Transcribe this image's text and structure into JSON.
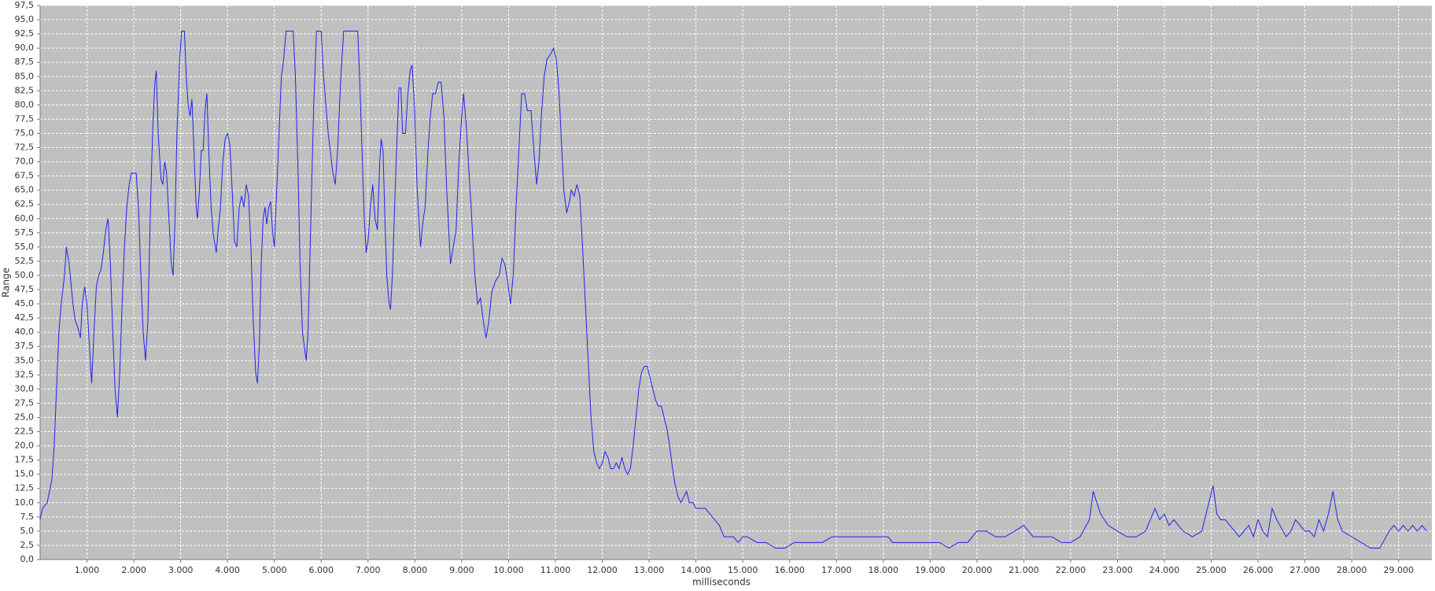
{
  "chart_data": {
    "type": "line",
    "x_label": "milliseconds",
    "y_label": "Range",
    "color": "#2222ee",
    "grid": true,
    "background": "#c0c0c0",
    "xlim": [
      0,
      29710
    ],
    "ylim": [
      0,
      97.5
    ],
    "xticks": [
      {
        "value": 1000,
        "label": "1.000"
      },
      {
        "value": 2000,
        "label": "2.000"
      },
      {
        "value": 3000,
        "label": "3.000"
      },
      {
        "value": 4000,
        "label": "4.000"
      },
      {
        "value": 5000,
        "label": "5.000"
      },
      {
        "value": 6000,
        "label": "6.000"
      },
      {
        "value": 7000,
        "label": "7.000"
      },
      {
        "value": 8000,
        "label": "8.000"
      },
      {
        "value": 9000,
        "label": "9.000"
      },
      {
        "value": 10000,
        "label": "10.000"
      },
      {
        "value": 11000,
        "label": "11.000"
      },
      {
        "value": 12000,
        "label": "12.000"
      },
      {
        "value": 13000,
        "label": "13.000"
      },
      {
        "value": 14000,
        "label": "14.000"
      },
      {
        "value": 15000,
        "label": "15.000"
      },
      {
        "value": 16000,
        "label": "16.000"
      },
      {
        "value": 17000,
        "label": "17.000"
      },
      {
        "value": 18000,
        "label": "18.000"
      },
      {
        "value": 19000,
        "label": "19.000"
      },
      {
        "value": 20000,
        "label": "20.000"
      },
      {
        "value": 21000,
        "label": "21.000"
      },
      {
        "value": 22000,
        "label": "22.000"
      },
      {
        "value": 23000,
        "label": "23.000"
      },
      {
        "value": 24000,
        "label": "24.000"
      },
      {
        "value": 25000,
        "label": "25.000"
      },
      {
        "value": 26000,
        "label": "26.000"
      },
      {
        "value": 27000,
        "label": "27.000"
      },
      {
        "value": 28000,
        "label": "28.000"
      },
      {
        "value": 29000,
        "label": "29.000"
      }
    ],
    "yticks": [
      {
        "value": 0,
        "label": "0,0"
      },
      {
        "value": 2.5,
        "label": "2,5"
      },
      {
        "value": 5,
        "label": "5,0"
      },
      {
        "value": 7.5,
        "label": "7,5"
      },
      {
        "value": 10,
        "label": "10,0"
      },
      {
        "value": 12.5,
        "label": "12,5"
      },
      {
        "value": 15,
        "label": "15,0"
      },
      {
        "value": 17.5,
        "label": "17,5"
      },
      {
        "value": 20,
        "label": "20,0"
      },
      {
        "value": 22.5,
        "label": "22,5"
      },
      {
        "value": 25,
        "label": "25,0"
      },
      {
        "value": 27.5,
        "label": "27,5"
      },
      {
        "value": 30,
        "label": "30,0"
      },
      {
        "value": 32.5,
        "label": "32,5"
      },
      {
        "value": 35,
        "label": "35,0"
      },
      {
        "value": 37.5,
        "label": "37,5"
      },
      {
        "value": 40,
        "label": "40,0"
      },
      {
        "value": 42.5,
        "label": "42,5"
      },
      {
        "value": 45,
        "label": "45,0"
      },
      {
        "value": 47.5,
        "label": "47,5"
      },
      {
        "value": 50,
        "label": "50,0"
      },
      {
        "value": 52.5,
        "label": "52,5"
      },
      {
        "value": 55,
        "label": "55,0"
      },
      {
        "value": 57.5,
        "label": "57,5"
      },
      {
        "value": 60,
        "label": "60,0"
      },
      {
        "value": 62.5,
        "label": "62,5"
      },
      {
        "value": 65,
        "label": "65,0"
      },
      {
        "value": 67.5,
        "label": "67,5"
      },
      {
        "value": 70,
        "label": "70,0"
      },
      {
        "value": 72.5,
        "label": "72,5"
      },
      {
        "value": 75,
        "label": "75,0"
      },
      {
        "value": 77.5,
        "label": "77,5"
      },
      {
        "value": 80,
        "label": "80,0"
      },
      {
        "value": 82.5,
        "label": "82,5"
      },
      {
        "value": 85,
        "label": "85,0"
      },
      {
        "value": 87.5,
        "label": "87,5"
      },
      {
        "value": 90,
        "label": "90,0"
      },
      {
        "value": 92.5,
        "label": "92,5"
      },
      {
        "value": 95,
        "label": "95,0"
      },
      {
        "value": 97.5,
        "label": "97,5"
      }
    ],
    "x": [
      0,
      50,
      150,
      250,
      300,
      350,
      400,
      450,
      520,
      560,
      620,
      700,
      750,
      800,
      860,
      900,
      950,
      1000,
      1050,
      1100,
      1150,
      1200,
      1250,
      1300,
      1350,
      1400,
      1450,
      1500,
      1550,
      1600,
      1650,
      1700,
      1750,
      1800,
      1850,
      1900,
      1950,
      2050,
      2100,
      2150,
      2200,
      2250,
      2300,
      2350,
      2400,
      2450,
      2480,
      2520,
      2580,
      2620,
      2660,
      2700,
      2750,
      2800,
      2840,
      2880,
      2920,
      2980,
      3020,
      3080,
      3120,
      3160,
      3200,
      3240,
      3280,
      3330,
      3360,
      3400,
      3440,
      3480,
      3520,
      3560,
      3600,
      3650,
      3700,
      3760,
      3800,
      3850,
      3900,
      3950,
      4000,
      4050,
      4100,
      4150,
      4200,
      4250,
      4300,
      4350,
      4400,
      4450,
      4500,
      4550,
      4600,
      4640,
      4680,
      4720,
      4760,
      4800,
      4840,
      4880,
      4920,
      4960,
      5000,
      5050,
      5100,
      5150,
      5200,
      5250,
      5400,
      5450,
      5500,
      5550,
      5600,
      5680,
      5720,
      5780,
      5840,
      5900,
      6000,
      6050,
      6150,
      6250,
      6300,
      6350,
      6420,
      6480,
      6780,
      6820,
      6880,
      6920,
      6960,
      7000,
      7050,
      7100,
      7150,
      7200,
      7250,
      7280,
      7320,
      7360,
      7400,
      7450,
      7480,
      7520,
      7560,
      7600,
      7660,
      7700,
      7740,
      7800,
      7850,
      7900,
      7940,
      7990,
      8050,
      8120,
      8180,
      8220,
      8280,
      8330,
      8380,
      8440,
      8500,
      8560,
      8620,
      8680,
      8760,
      8820,
      8880,
      8940,
      9000,
      9040,
      9100,
      9200,
      9280,
      9340,
      9400,
      9460,
      9520,
      9580,
      9640,
      9720,
      9800,
      9860,
      9920,
      9980,
      10040,
      10100,
      10160,
      10220,
      10280,
      10340,
      10400,
      10480,
      10540,
      10600,
      10650,
      10700,
      10760,
      10820,
      10900,
      10960,
      11020,
      11080,
      11120,
      11180,
      11240,
      11300,
      11340,
      11400,
      11460,
      11520,
      11580,
      11640,
      11700,
      11760,
      11820,
      11880,
      11940,
      12000,
      12060,
      12120,
      12180,
      12240,
      12300,
      12360,
      12420,
      12480,
      12540,
      12600,
      12660,
      12720,
      12780,
      12840,
      12900,
      12960,
      13020,
      13080,
      13140,
      13200,
      13260,
      13320,
      13380,
      13440,
      13500,
      13560,
      13620,
      13680,
      13740,
      13800,
      13860,
      13940,
      14000,
      14100,
      14200,
      14300,
      14400,
      14500,
      14600,
      14800,
      14900,
      15000,
      15100,
      15300,
      15500,
      15700,
      15900,
      16100,
      16300,
      16500,
      16700,
      16900,
      17100,
      17300,
      17500,
      17700,
      17900,
      18100,
      18200,
      18400,
      18600,
      18800,
      19000,
      19200,
      19400,
      19600,
      19800,
      20000,
      20200,
      20400,
      20600,
      20800,
      21000,
      21200,
      21400,
      21600,
      21800,
      22000,
      22200,
      22400,
      22480,
      22560,
      22640,
      22800,
      23000,
      23200,
      23400,
      23600,
      23700,
      23800,
      23900,
      24000,
      24100,
      24200,
      24400,
      24600,
      24800,
      24950,
      25040,
      25120,
      25200,
      25300,
      25400,
      25500,
      25600,
      25800,
      25900,
      26000,
      26100,
      26200,
      26300,
      26400,
      26600,
      26700,
      26800,
      26900,
      27000,
      27100,
      27200,
      27300,
      27400,
      27500,
      27600,
      27700,
      27800,
      28000,
      28200,
      28400,
      28600,
      28800,
      28900,
      29000,
      29100,
      29200,
      29300,
      29400,
      29500,
      29600
    ],
    "values": [
      7,
      9,
      10,
      14,
      20,
      30,
      40,
      45,
      50,
      55,
      52,
      45,
      42,
      41,
      39,
      45,
      48,
      45,
      38,
      31,
      40,
      48,
      50,
      51,
      54,
      58,
      60,
      52,
      40,
      30,
      25,
      33,
      45,
      55,
      62,
      66,
      68,
      68,
      62,
      50,
      40,
      35,
      42,
      60,
      75,
      84,
      86,
      75,
      67,
      66,
      70,
      68,
      60,
      52,
      50,
      60,
      75,
      88,
      93,
      93,
      85,
      80,
      78,
      81,
      73,
      62,
      60,
      65,
      72,
      72,
      79,
      82,
      72,
      62,
      57,
      54,
      58,
      62,
      70,
      74,
      75,
      73,
      65,
      56,
      55,
      62,
      64,
      62,
      66,
      64,
      55,
      42,
      33,
      31,
      38,
      52,
      60,
      62,
      59,
      62,
      63,
      58,
      55,
      65,
      75,
      85,
      88,
      93,
      93,
      85,
      70,
      52,
      40,
      35,
      40,
      60,
      80,
      93,
      93,
      85,
      75,
      68,
      66,
      72,
      85,
      93,
      93,
      85,
      70,
      60,
      54,
      56,
      62,
      66,
      60,
      58,
      70,
      74,
      72,
      60,
      50,
      45,
      44,
      50,
      60,
      70,
      83,
      83,
      75,
      75,
      82,
      86,
      87,
      80,
      65,
      55,
      60,
      62,
      72,
      78,
      82,
      82,
      84,
      84,
      78,
      65,
      52,
      55,
      58,
      70,
      78,
      82,
      76,
      62,
      50,
      45,
      46,
      42,
      39,
      42,
      47,
      49,
      50,
      53,
      52,
      49,
      45,
      50,
      62,
      72,
      82,
      82,
      79,
      79,
      72,
      66,
      70,
      78,
      85,
      88,
      89,
      90,
      88,
      82,
      75,
      65,
      61,
      63,
      65,
      64,
      66,
      64,
      55,
      45,
      35,
      25,
      19,
      17,
      16,
      17,
      19,
      18,
      16,
      16,
      17,
      16,
      18,
      16,
      15,
      16,
      20,
      25,
      30,
      33,
      34,
      34,
      32,
      30,
      28,
      27,
      27,
      25,
      23,
      20,
      16,
      13,
      11,
      10,
      11,
      12,
      10,
      10,
      9,
      9,
      9,
      8,
      7,
      6,
      4,
      4,
      3,
      4,
      4,
      3,
      3,
      2,
      2,
      3,
      3,
      3,
      3,
      4,
      4,
      4,
      4,
      4,
      4,
      4,
      3,
      3,
      3,
      3,
      3,
      3,
      2,
      3,
      3,
      5,
      5,
      4,
      4,
      5,
      6,
      4,
      4,
      4,
      3,
      3,
      4,
      7,
      12,
      10,
      8,
      6,
      5,
      4,
      4,
      5,
      7,
      9,
      7,
      8,
      6,
      7,
      5,
      4,
      5,
      10,
      13,
      8,
      7,
      7,
      6,
      5,
      4,
      6,
      4,
      7,
      5,
      4,
      9,
      7,
      4,
      5,
      7,
      6,
      5,
      5,
      4,
      7,
      5,
      8,
      12,
      7,
      5,
      4,
      3,
      2,
      2,
      5,
      6,
      5,
      6,
      5,
      6,
      5,
      6,
      5
    ]
  }
}
